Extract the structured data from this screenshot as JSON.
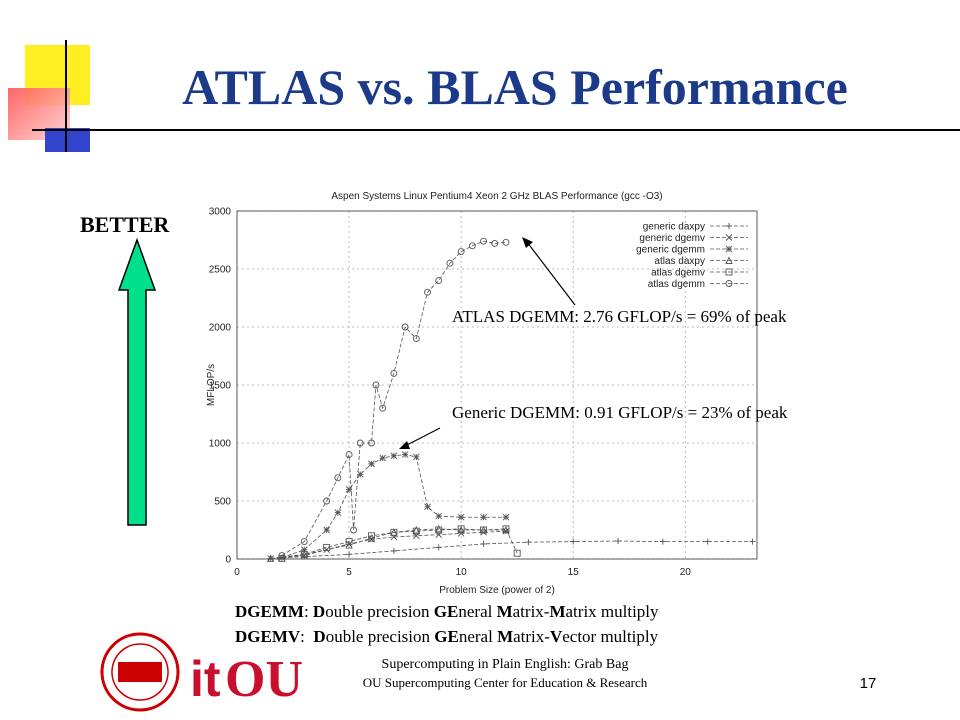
{
  "slide": {
    "title": "ATLAS vs. BLAS Performance",
    "better": "BETTER",
    "definitions": [
      [
        "DGEMM",
        ": ",
        "D",
        "ouble precision ",
        "GE",
        "neral ",
        "M",
        "atrix-",
        "M",
        "atrix multiply"
      ],
      [
        "DGEMV",
        ":  ",
        "D",
        "ouble precision ",
        "GE",
        "neral ",
        "M",
        "atrix-",
        "V",
        "ector multiply"
      ]
    ],
    "footer": [
      "Supercomputing in Plain English: Grab Bag",
      "OU Supercomputing Center for Education & Research"
    ],
    "page_number": "17",
    "logos": [
      "it",
      "OU"
    ]
  },
  "chart_data": {
    "type": "line",
    "title": "Aspen Systems Linux Pentium4 Xeon 2 GHz BLAS Performance (gcc -O3)",
    "x_label": "Problem Size (power of 2)",
    "y_label": "MFLOP/s",
    "xlim": [
      0,
      23.2
    ],
    "ylim": [
      0,
      3000
    ],
    "xticks": [
      0,
      5,
      10,
      15,
      20
    ],
    "yticks": [
      0,
      500,
      1000,
      1500,
      2000,
      2500,
      3000
    ],
    "grid": true,
    "legend": "top-right",
    "annotations": [
      "ATLAS DGEMM:   2.76 GFLOP/s = 69% of peak",
      "Generic DGEMM:   0.91 GFLOP/s = 23% of peak"
    ],
    "series": [
      {
        "name": "generic daxpy",
        "color": "#555555",
        "marker": "plus",
        "x": [
          1.5,
          3,
          5,
          7,
          9,
          11,
          13,
          15,
          17,
          19,
          21,
          23
        ],
        "values": [
          5,
          20,
          40,
          70,
          100,
          130,
          145,
          150,
          155,
          150,
          150,
          150
        ]
      },
      {
        "name": "generic dgemv",
        "color": "#555555",
        "marker": "cross",
        "x": [
          1.5,
          3,
          4,
          5,
          6,
          7,
          8,
          9,
          10,
          11,
          12
        ],
        "values": [
          5,
          30,
          80,
          130,
          170,
          190,
          200,
          210,
          220,
          230,
          240
        ]
      },
      {
        "name": "generic dgemm",
        "color": "#555555",
        "marker": "star",
        "x": [
          2,
          3,
          4,
          4.5,
          5,
          5.5,
          6,
          6.5,
          7,
          7.5,
          8,
          8.5,
          9,
          10,
          11,
          12
        ],
        "values": [
          10,
          80,
          250,
          400,
          600,
          730,
          820,
          870,
          890,
          900,
          880,
          450,
          370,
          360,
          360,
          360
        ]
      },
      {
        "name": "atlas daxpy",
        "color": "#555555",
        "marker": "triangle",
        "x": [
          1.5,
          3,
          5,
          6,
          7,
          8,
          9,
          10,
          11,
          12
        ],
        "values": [
          5,
          40,
          120,
          180,
          230,
          250,
          260,
          250,
          250,
          250
        ]
      },
      {
        "name": "atlas dgemv",
        "color": "#555555",
        "marker": "square",
        "x": [
          2,
          3,
          4,
          5,
          6,
          7,
          8,
          9,
          10,
          11,
          12,
          12.5
        ],
        "values": [
          5,
          40,
          100,
          150,
          200,
          230,
          240,
          250,
          260,
          250,
          260,
          50
        ]
      },
      {
        "name": "atlas dgemm",
        "color": "#555555",
        "marker": "circle",
        "x": [
          2,
          3,
          4,
          4.5,
          5,
          5.2,
          5.5,
          6,
          6.2,
          6.5,
          7,
          7.5,
          8,
          8.5,
          9,
          9.5,
          10,
          10.5,
          11,
          11.5,
          12
        ],
        "values": [
          30,
          150,
          500,
          700,
          900,
          250,
          1000,
          1000,
          1500,
          1300,
          1600,
          2000,
          1900,
          2300,
          2400,
          2550,
          2650,
          2700,
          2740,
          2720,
          2730
        ]
      }
    ]
  }
}
